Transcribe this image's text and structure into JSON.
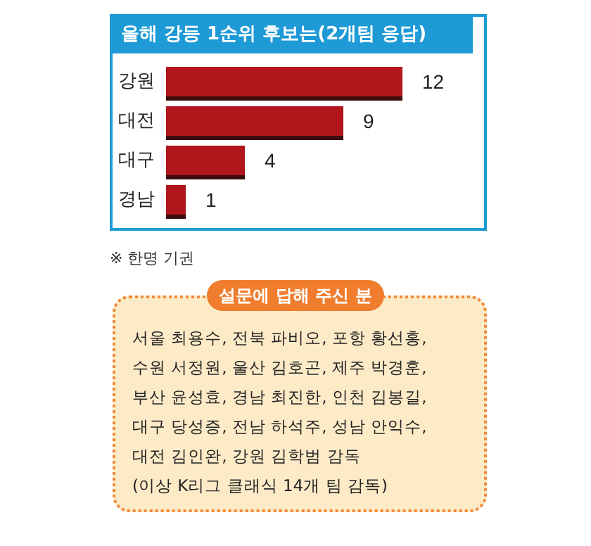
{
  "chart_data": {
    "type": "bar",
    "orientation": "horizontal",
    "title": "올해 강등 1순위 후보는(2개팀 응답)",
    "categories": [
      "강원",
      "대전",
      "대구",
      "경남"
    ],
    "values": [
      12,
      9,
      4,
      1
    ],
    "color": "#b0141c",
    "data_labels": true,
    "annotations": [
      "※ 한명 기권",
      "설문에 답해 주신 분",
      "서울 최용수, 전북 파비오, 포항 황선홍,",
      "수원 서정원, 울산 김호곤, 제주 박경훈,",
      "부산 윤성효, 경남 최진한, 인천 김봉길,",
      "대구 당성증, 전남 하석주, 성남 안익수,",
      "대전 김인완, 강원 김학범 감독",
      "(이상 K리그 클래식 14개 팀 감독)"
    ]
  }
}
